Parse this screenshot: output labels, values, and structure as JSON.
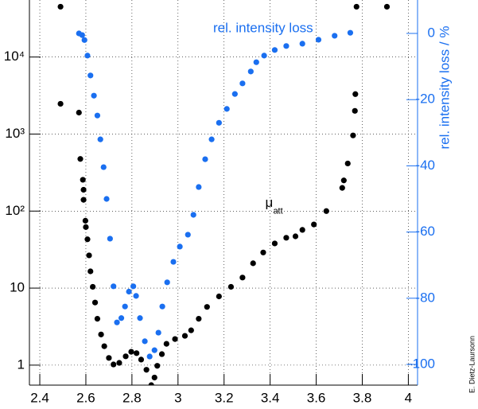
{
  "chart_data": {
    "type": "scatter",
    "y2label": "rel. intensity loss / %",
    "credit": "E. Dietz-Laursonn",
    "annotations": [
      {
        "text": "μ",
        "subscript": "att",
        "x": 3.42,
        "y": 90
      }
    ],
    "xlim": [
      2.355,
      4.04
    ],
    "xticks": [
      2.4,
      2.6,
      2.8,
      3,
      3.2,
      3.4,
      3.6,
      3.8,
      4
    ],
    "ylim": [
      0.55,
      55000
    ],
    "ylog": true,
    "yticks": [
      1,
      10,
      {
        "value": 100,
        "label": "10²"
      },
      {
        "value": 1000,
        "label": "10³"
      },
      {
        "value": 10000,
        "label": "10⁴"
      }
    ],
    "y2lim": [
      -106.25,
      10.1
    ],
    "y2ticks": [
      -100,
      -80,
      -60,
      -40,
      -20,
      0
    ],
    "grid": true,
    "series": [
      {
        "color": "#000000",
        "x": [
          2.49,
          2.49,
          2.57,
          2.576,
          2.587,
          2.59,
          2.59,
          2.598,
          2.6,
          2.607,
          2.614,
          2.62,
          2.63,
          2.64,
          2.65,
          2.666,
          2.68,
          2.7,
          2.72,
          2.745,
          2.773,
          2.797,
          2.82,
          2.84,
          2.863,
          2.884,
          2.898,
          2.91,
          2.93,
          2.95,
          2.987,
          3.03,
          3.057,
          3.09,
          3.126,
          3.178,
          3.23,
          3.28,
          3.326,
          3.37,
          3.42,
          3.47,
          3.51,
          3.54,
          3.59,
          3.644,
          3.713,
          3.72,
          3.737,
          3.76,
          3.768,
          3.77,
          3.775,
          3.907
        ],
        "values": [
          45000,
          2470,
          1900,
          475,
          255,
          189,
          140,
          75,
          62,
          43,
          26.6,
          16.5,
          10.4,
          6.5,
          4.0,
          2.5,
          1.76,
          1.24,
          1.02,
          1.07,
          1.3,
          1.49,
          1.43,
          1.18,
          0.87,
          0.55,
          0.69,
          0.98,
          1.39,
          1.89,
          2.18,
          2.4,
          2.83,
          4.0,
          5.7,
          7.8,
          10.4,
          13.7,
          21,
          29,
          38,
          45,
          47,
          57,
          67,
          100,
          200,
          250,
          415,
          960,
          2000,
          3300,
          45000,
          45000
        ]
      },
      {
        "name": "rel. intensity loss",
        "color": "#1a6ff0",
        "axis": "y2",
        "x": [
          2.57,
          2.584,
          2.594,
          2.607,
          2.62,
          2.635,
          2.65,
          2.663,
          2.677,
          2.69,
          2.705,
          2.72,
          2.735,
          2.754,
          2.77,
          2.787,
          2.806,
          2.818,
          2.835,
          2.856,
          2.877,
          2.898,
          2.915,
          2.932,
          2.953,
          2.98,
          3.008,
          3.043,
          3.067,
          3.09,
          3.118,
          3.146,
          3.178,
          3.212,
          3.247,
          3.28,
          3.316,
          3.34,
          3.374,
          3.42,
          3.47,
          3.54,
          3.61,
          3.68,
          3.748
        ],
        "values": [
          0,
          -0.5,
          -2,
          -6.7,
          -12.7,
          -18.8,
          -24.8,
          -32,
          -40.4,
          -50,
          -62,
          -76.4,
          -87.3,
          -86,
          -82.5,
          -78,
          -76.4,
          -79.3,
          -86,
          -93,
          -97.6,
          -95.7,
          -90.4,
          -82.5,
          -75.2,
          -69,
          -64.4,
          -60.8,
          -54.8,
          -46.4,
          -38,
          -32,
          -27,
          -22.8,
          -18.3,
          -15.1,
          -11.5,
          -8.7,
          -6.7,
          -5,
          -3.8,
          -3.1,
          -1.9,
          -0.7,
          0.2
        ]
      }
    ]
  }
}
